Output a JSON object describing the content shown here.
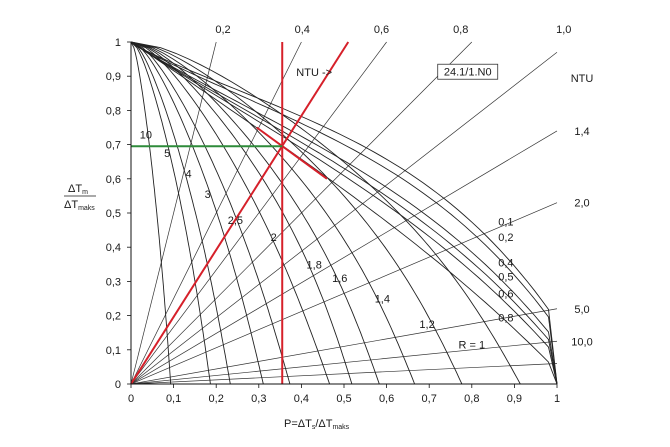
{
  "chart_data": {
    "type": "line",
    "xlabel": "P=ΔT",
    "xlabel_sub1": "s",
    "xlabel_mid": "/ΔT",
    "xlabel_sub2": "maks",
    "ylabel_num": "ΔT",
    "ylabel_num_sub": "m",
    "ylabel_den": "ΔT",
    "ylabel_den_sub": "maks",
    "xlim": [
      0,
      1
    ],
    "ylim": [
      0,
      1
    ],
    "x_ticks": [
      "0",
      "0,1",
      "0,2",
      "0,3",
      "0,4",
      "0,5",
      "0,6",
      "0,7",
      "0,8",
      "0,9",
      "1"
    ],
    "y_ticks": [
      "0",
      "0,1",
      "0,2",
      "0,3",
      "0,4",
      "0,5",
      "0,6",
      "0,7",
      "0,8",
      "0,9",
      "1"
    ],
    "ntu_label": "NTU ->",
    "ntu_axis_label": "NTU",
    "figure_code": "24.1/1.N0",
    "ntu_top_labels": [
      {
        "text": "0,2",
        "x": 0.2
      },
      {
        "text": "0,4",
        "x": 0.4
      },
      {
        "text": "0,6",
        "x": 0.6
      },
      {
        "text": "0,8",
        "x": 0.8
      },
      {
        "text": "1,0",
        "x": 1.06
      }
    ],
    "ntu_right_labels": [
      {
        "text": "1,4",
        "y": 0.74
      },
      {
        "text": "2,0",
        "y": 0.53
      },
      {
        "text": "5,0",
        "y": 0.22
      },
      {
        "text": "10,0",
        "y": 0.125
      }
    ],
    "r_labels": [
      {
        "text": "10",
        "x": 0.035,
        "y": 0.73
      },
      {
        "text": "5",
        "x": 0.085,
        "y": 0.675
      },
      {
        "text": "4",
        "x": 0.135,
        "y": 0.615
      },
      {
        "text": "3",
        "x": 0.18,
        "y": 0.555
      },
      {
        "text": "2,5",
        "x": 0.245,
        "y": 0.48
      },
      {
        "text": "2",
        "x": 0.335,
        "y": 0.43
      },
      {
        "text": "1,8",
        "x": 0.43,
        "y": 0.35
      },
      {
        "text": "1,6",
        "x": 0.49,
        "y": 0.31
      },
      {
        "text": "1,4",
        "x": 0.59,
        "y": 0.25
      },
      {
        "text": "1,2",
        "x": 0.695,
        "y": 0.175
      },
      {
        "text": "R = 1",
        "x": 0.8,
        "y": 0.115
      },
      {
        "text": "0,8",
        "x": 0.88,
        "y": 0.195
      },
      {
        "text": "0,6",
        "x": 0.88,
        "y": 0.265
      },
      {
        "text": "0,5",
        "x": 0.88,
        "y": 0.315
      },
      {
        "text": "0,4",
        "x": 0.88,
        "y": 0.355
      },
      {
        "text": "0,2",
        "x": 0.88,
        "y": 0.43
      },
      {
        "text": "0,1",
        "x": 0.88,
        "y": 0.475
      }
    ],
    "r_curves": [
      {
        "R": 10,
        "end_x": 0.1
      },
      {
        "R": 5,
        "end_x": 0.2
      },
      {
        "R": 4,
        "end_x": 0.25
      },
      {
        "R": 3,
        "end_x": 0.333
      },
      {
        "R": 2.5,
        "end_x": 0.4
      },
      {
        "R": 2,
        "end_x": 0.5
      },
      {
        "R": 1.8,
        "end_x": 0.556
      },
      {
        "R": 1.6,
        "end_x": 0.625
      },
      {
        "R": 1.4,
        "end_x": 0.714
      },
      {
        "R": 1.2,
        "end_x": 0.833
      },
      {
        "R": 1,
        "end_x": 0.98
      },
      {
        "R": 0.8,
        "end_x": 1
      },
      {
        "R": 0.6,
        "end_x": 1
      },
      {
        "R": 0.5,
        "end_x": 1
      },
      {
        "R": 0.4,
        "end_x": 1
      },
      {
        "R": 0.2,
        "end_x": 1
      },
      {
        "R": 0.1,
        "end_x": 1
      }
    ],
    "ntu_rays": [
      {
        "end_x": 0.2,
        "end_y": 1
      },
      {
        "end_x": 0.4,
        "end_y": 1
      },
      {
        "end_x": 0.6,
        "end_y": 1
      },
      {
        "end_x": 0.8,
        "end_y": 1
      },
      {
        "end_x": 1,
        "end_y": 0.97
      },
      {
        "end_x": 1,
        "end_y": 0.74
      },
      {
        "end_x": 1,
        "end_y": 0.53
      },
      {
        "end_x": 1,
        "end_y": 0.22
      },
      {
        "end_x": 1,
        "end_y": 0.125
      },
      {
        "end_x": 1,
        "end_y": 0.06
      }
    ],
    "example_lines": [
      {
        "name": "red-vertical",
        "color": "#d6202a",
        "points": [
          [
            0.355,
            0
          ],
          [
            0.355,
            1
          ]
        ]
      },
      {
        "name": "red-ntu",
        "color": "#d6202a",
        "points": [
          [
            0,
            0
          ],
          [
            0.51,
            1
          ]
        ]
      },
      {
        "name": "red-r",
        "color": "#d6202a",
        "points": [
          [
            0.295,
            0.75
          ],
          [
            0.46,
            0.6
          ]
        ]
      },
      {
        "name": "green-horizontal",
        "color": "#2e8b3a",
        "points": [
          [
            0,
            0.695
          ],
          [
            0.355,
            0.695
          ]
        ]
      }
    ],
    "grid": false
  }
}
